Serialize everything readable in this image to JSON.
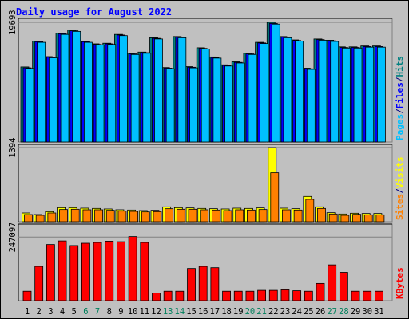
{
  "title": "Daily usage for August 2022",
  "chart_data": [
    {
      "panel": "hits",
      "type": "bar",
      "categories": [
        "1",
        "2",
        "3",
        "4",
        "5",
        "6",
        "7",
        "8",
        "9",
        "10",
        "11",
        "12",
        "13",
        "14",
        "15",
        "16",
        "17",
        "18",
        "19",
        "20",
        "21",
        "22",
        "23",
        "24",
        "25",
        "26",
        "27",
        "28",
        "29",
        "30",
        "31"
      ],
      "weekend_days": [
        "6",
        "7",
        "13",
        "14",
        "20",
        "21",
        "27",
        "28"
      ],
      "ymax_label": "19693",
      "ylim": [
        0,
        19693
      ],
      "legend": [
        {
          "text": "Pages",
          "color": "#00c0ff"
        },
        {
          "text": "/",
          "color": "#000080"
        },
        {
          "text": "Files",
          "color": "#0000ff"
        },
        {
          "text": "/",
          "color": "#000080"
        },
        {
          "text": "Hits",
          "color": "#008080"
        }
      ],
      "series": [
        {
          "name": "Hits",
          "color": "#008080",
          "values": [
            12350,
            16600,
            14050,
            17900,
            18400,
            16600,
            16150,
            16250,
            17700,
            14600,
            14800,
            17150,
            12250,
            17350,
            12400,
            15500,
            14000,
            12700,
            13200,
            14600,
            16400,
            19693,
            17350,
            16800,
            12150,
            16950,
            16750,
            15650,
            15650,
            15800,
            15800
          ]
        },
        {
          "name": "Files",
          "color": "#0000ff",
          "values": [
            12200,
            16500,
            13950,
            17800,
            18300,
            16500,
            16050,
            16150,
            17600,
            14500,
            14700,
            17050,
            12150,
            17250,
            12300,
            15400,
            13900,
            12600,
            13100,
            14500,
            16300,
            19500,
            17250,
            16700,
            12050,
            16850,
            16650,
            15550,
            15550,
            15700,
            15700
          ]
        },
        {
          "name": "Pages",
          "color": "#00c0ff",
          "values": [
            12100,
            16400,
            13850,
            17700,
            18200,
            16400,
            15950,
            16050,
            17500,
            14400,
            14600,
            16950,
            12050,
            17150,
            12200,
            15300,
            13800,
            12500,
            13000,
            14400,
            16200,
            19400,
            17150,
            16600,
            11950,
            16750,
            16550,
            15450,
            15450,
            15600,
            15600
          ]
        }
      ]
    },
    {
      "panel": "visits",
      "type": "bar",
      "ymax_label": "1394",
      "ylim": [
        0,
        1394
      ],
      "legend": [
        {
          "text": "Sites",
          "color": "#ff8000"
        },
        {
          "text": "/",
          "color": "#000080"
        },
        {
          "text": "Visits",
          "color": "#ffff00"
        }
      ],
      "series": [
        {
          "name": "Visits",
          "color": "#ffff00",
          "values": [
            165,
            135,
            190,
            265,
            265,
            255,
            250,
            240,
            225,
            220,
            210,
            215,
            280,
            265,
            260,
            250,
            245,
            240,
            255,
            250,
            260,
            1394,
            255,
            245,
            475,
            280,
            170,
            145,
            160,
            155,
            155
          ]
        },
        {
          "name": "Sites",
          "color": "#ff8000",
          "values": [
            135,
            120,
            165,
            230,
            235,
            225,
            225,
            215,
            200,
            195,
            185,
            190,
            245,
            235,
            235,
            225,
            220,
            210,
            225,
            220,
            230,
            920,
            225,
            220,
            420,
            250,
            145,
            120,
            140,
            130,
            130
          ]
        }
      ]
    },
    {
      "panel": "kbytes",
      "type": "bar",
      "ymax_label": "247097",
      "ylim": [
        0,
        285000
      ],
      "legend": [
        {
          "text": "KBytes",
          "color": "#ff0000"
        }
      ],
      "series": [
        {
          "name": "KBytes",
          "color": "#ff0000",
          "values": [
            36500,
            133000,
            218000,
            232000,
            214000,
            223000,
            226000,
            231000,
            229000,
            249000,
            226000,
            29500,
            36500,
            36500,
            125000,
            133000,
            128000,
            36500,
            36500,
            36500,
            40000,
            40000,
            42000,
            38500,
            36500,
            67000,
            139000,
            110000,
            36500,
            36500,
            36500
          ]
        }
      ]
    }
  ],
  "colors": {
    "background": "#c0c0c0",
    "title": "#0000ff",
    "weekend_label": "#00805c",
    "weekday_label": "#000000"
  }
}
